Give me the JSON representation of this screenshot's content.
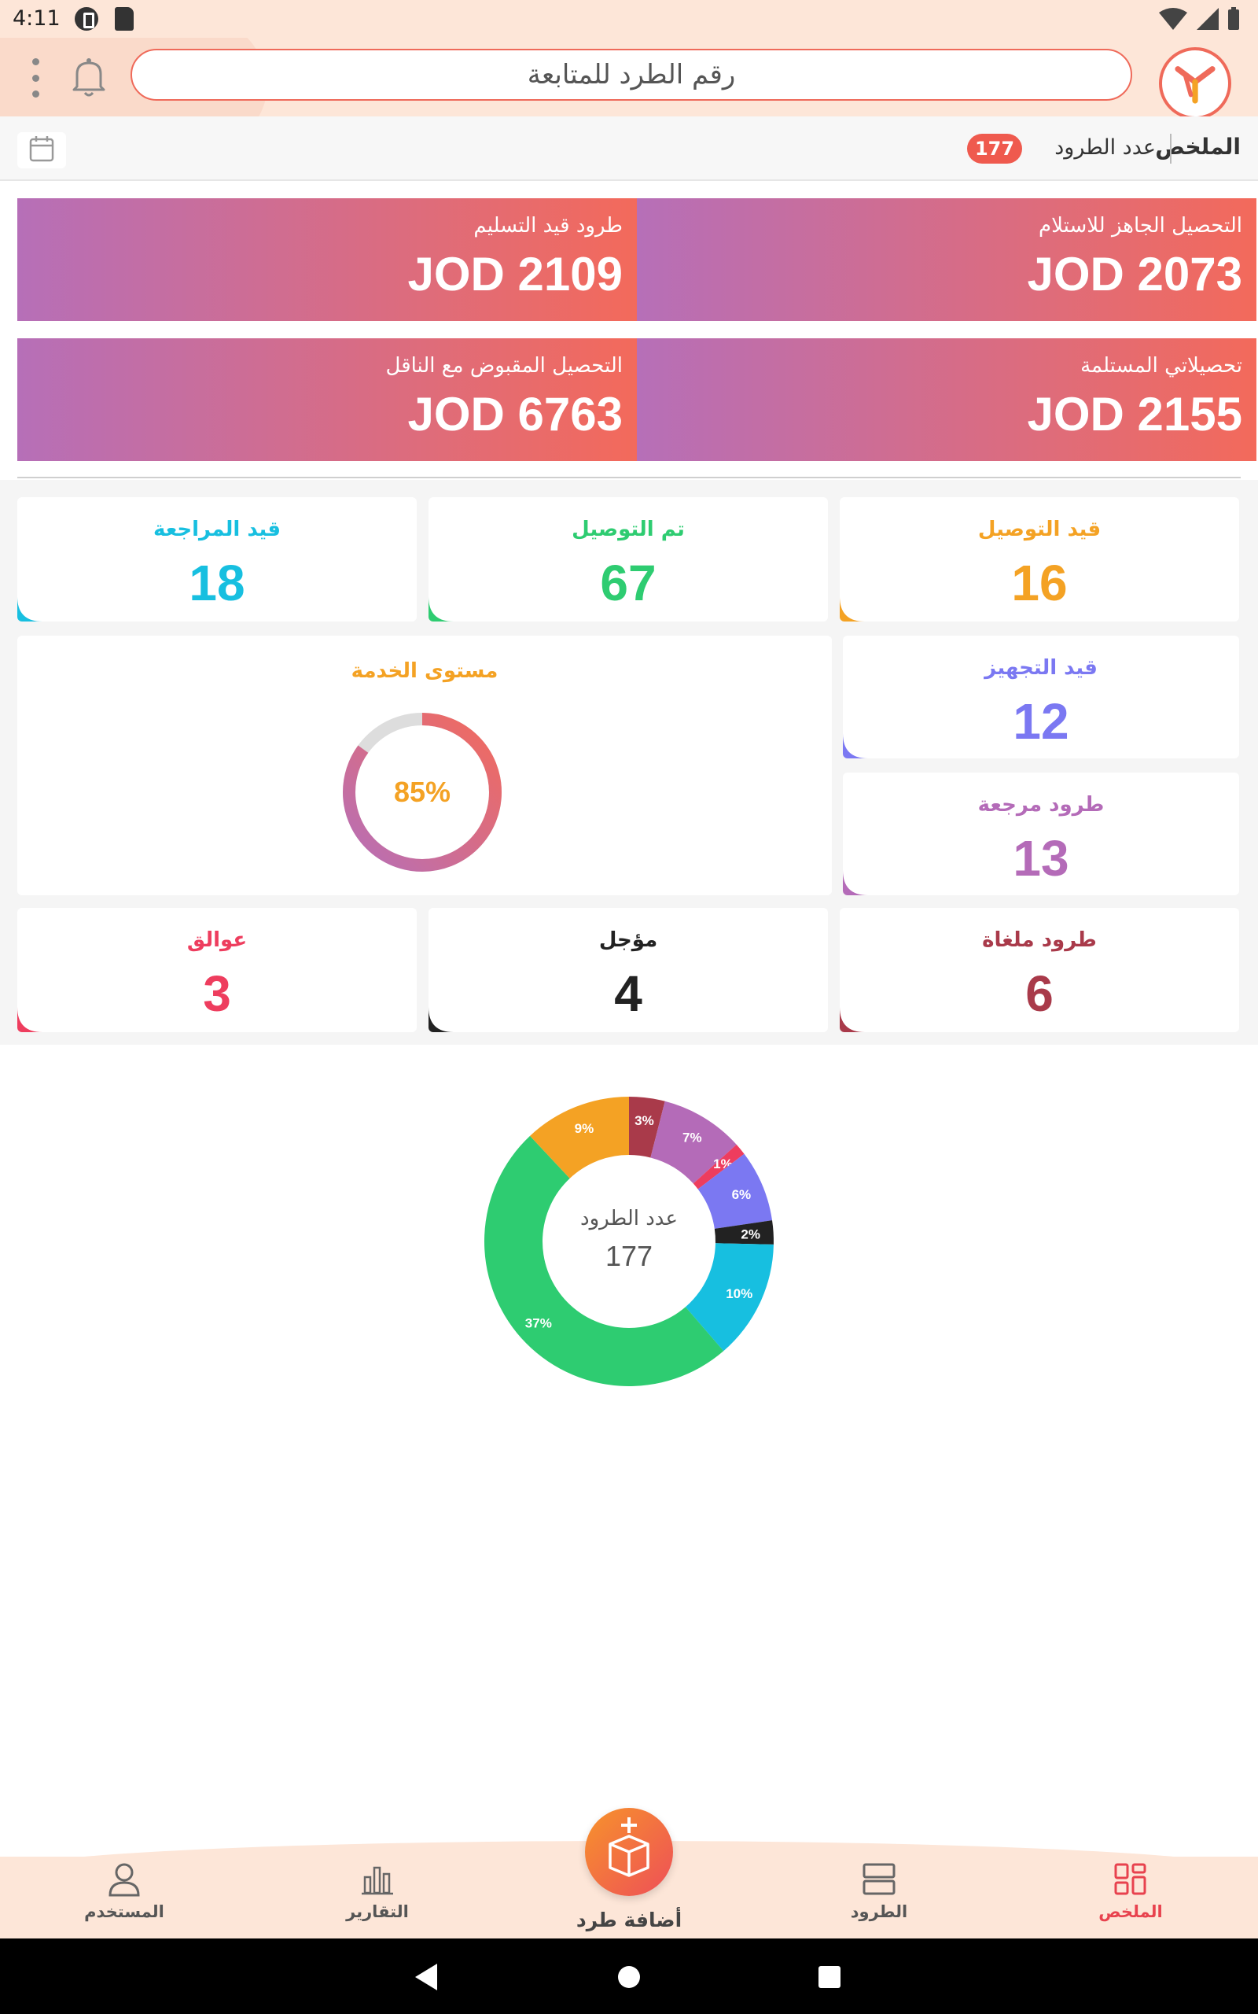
{
  "status_bar": {
    "time": "4:11"
  },
  "header": {
    "search_placeholder": "رقم الطرد للمتابعة"
  },
  "summary": {
    "title": "الملخص",
    "count_label": "عدد الطرود",
    "count": "177"
  },
  "money_cards": [
    {
      "label": "التحصيل الجاهز للاستلام",
      "value": "JOD 2073"
    },
    {
      "label": "طرود قيد التسليم",
      "value": "JOD 2109"
    },
    {
      "label": "تحصيلاتي المستلمة",
      "value": "JOD 2155"
    },
    {
      "label": "التحصيل المقبوض مع الناقل",
      "value": "JOD 6763"
    }
  ],
  "status_cards": [
    {
      "label": "قيد التوصيل",
      "value": "16",
      "color": "#f4a224"
    },
    {
      "label": "تم التوصيل",
      "value": "67",
      "color": "#2ecc71"
    },
    {
      "label": "قيد المراجعة",
      "value": "18",
      "color": "#17bfe0"
    },
    {
      "label": "قيد التجهيز",
      "value": "12",
      "color": "#7b78f2"
    },
    {
      "label": "طرود مرجعة",
      "value": "13",
      "color": "#b46bb8"
    },
    {
      "label": "طرود ملغاة",
      "value": "6",
      "color": "#a93a4a"
    },
    {
      "label": "مؤجل",
      "value": "4",
      "color": "#222222"
    },
    {
      "label": "عوالق",
      "value": "3",
      "color": "#ee3d5e"
    }
  ],
  "service_level": {
    "label": "مستوى الخدمة",
    "percent_text": "85%",
    "percent": 85
  },
  "chart_data": {
    "type": "pie",
    "center_label": "عدد الطرود",
    "center_value": "177",
    "slices": [
      {
        "label": "3%",
        "value": 3,
        "color": "#a93a4a"
      },
      {
        "label": "7%",
        "value": 7,
        "color": "#b46bb8"
      },
      {
        "label": "1%",
        "value": 1,
        "color": "#ee3d5e"
      },
      {
        "label": "6%",
        "value": 6,
        "color": "#7b78f2"
      },
      {
        "label": "2%",
        "value": 2,
        "color": "#222222"
      },
      {
        "label": "10%",
        "value": 10,
        "color": "#17bfe0"
      },
      {
        "label": "37%",
        "value": 37,
        "color": "#2ecc71"
      },
      {
        "label": "9%",
        "value": 9,
        "color": "#f4a224"
      }
    ]
  },
  "bottom_nav": {
    "items": [
      {
        "label": "الملخص",
        "icon": "grid-icon"
      },
      {
        "label": "الطرود",
        "icon": "list-icon"
      },
      {
        "label": "التقارير",
        "icon": "chart-icon"
      },
      {
        "label": "المستخدم",
        "icon": "user-icon"
      }
    ],
    "fab_label": "أضافة طرد"
  },
  "colors": {
    "accent": "#ef5a4e",
    "gradient_start": "#b66fb8",
    "gradient_end": "#f36a5b"
  }
}
